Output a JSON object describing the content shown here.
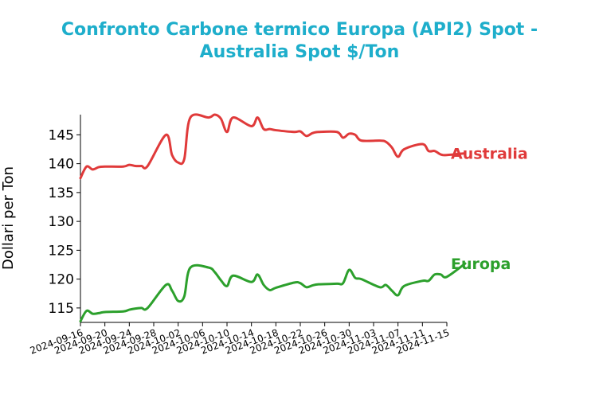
{
  "chart_data": {
    "type": "line",
    "title_lines": [
      "Confronto Carbone termico Europa (API2) Spot -",
      "Australia Spot $/Ton"
    ],
    "ylabel": "Dollari per Ton",
    "xlabel": "",
    "ylim": [
      112.5,
      148.5
    ],
    "yticks": [
      115,
      120,
      125,
      130,
      135,
      140,
      145
    ],
    "xlim": [
      "2024-09-16",
      "2024-11-15"
    ],
    "xticks": [
      "2024-09-16",
      "2024-09-20",
      "2024-09-24",
      "2024-09-28",
      "2024-10-02",
      "2024-10-06",
      "2024-10-10",
      "2024-10-14",
      "2024-10-18",
      "2024-10-22",
      "2024-10-26",
      "2024-10-30",
      "2024-11-03",
      "2024-11-07",
      "2024-11-11",
      "2024-11-15"
    ],
    "legend": "end-of-line labels",
    "grid": false,
    "series": [
      {
        "name": "Australia",
        "color": "#e03a3a",
        "points": [
          [
            "2024-09-16",
            137.5
          ],
          [
            "2024-09-17",
            139.5
          ],
          [
            "2024-09-18",
            139.0
          ],
          [
            "2024-09-19",
            139.4
          ],
          [
            "2024-09-20",
            139.5
          ],
          [
            "2024-09-23",
            139.5
          ],
          [
            "2024-09-24",
            139.8
          ],
          [
            "2024-09-25",
            139.6
          ],
          [
            "2024-09-26",
            139.6
          ],
          [
            "2024-09-27",
            139.6
          ],
          [
            "2024-09-30",
            145.0
          ],
          [
            "2024-10-01",
            141.5
          ],
          [
            "2024-10-02",
            140.2
          ],
          [
            "2024-10-03",
            140.8
          ],
          [
            "2024-10-04",
            148.0
          ],
          [
            "2024-10-07",
            148.0
          ],
          [
            "2024-10-08",
            148.5
          ],
          [
            "2024-10-09",
            147.8
          ],
          [
            "2024-10-10",
            145.5
          ],
          [
            "2024-10-11",
            148.0
          ],
          [
            "2024-10-14",
            146.5
          ],
          [
            "2024-10-15",
            148.0
          ],
          [
            "2024-10-16",
            146.0
          ],
          [
            "2024-10-17",
            146.0
          ],
          [
            "2024-10-18",
            145.8
          ],
          [
            "2024-10-21",
            145.5
          ],
          [
            "2024-10-22",
            145.6
          ],
          [
            "2024-10-23",
            144.8
          ],
          [
            "2024-10-24",
            145.3
          ],
          [
            "2024-10-25",
            145.5
          ],
          [
            "2024-10-28",
            145.5
          ],
          [
            "2024-10-29",
            144.5
          ],
          [
            "2024-10-30",
            145.2
          ],
          [
            "2024-10-31",
            145.0
          ],
          [
            "2024-11-01",
            144.0
          ],
          [
            "2024-11-04",
            144.0
          ],
          [
            "2024-11-05",
            143.8
          ],
          [
            "2024-11-06",
            142.8
          ],
          [
            "2024-11-07",
            141.2
          ],
          [
            "2024-11-08",
            142.5
          ],
          [
            "2024-11-11",
            143.4
          ],
          [
            "2024-11-12",
            142.2
          ],
          [
            "2024-11-13",
            142.2
          ],
          [
            "2024-11-14",
            141.6
          ],
          [
            "2024-11-15",
            141.5
          ],
          [
            "2024-11-18",
            141.8
          ]
        ]
      },
      {
        "name": "Europa",
        "color": "#2ca02c",
        "points": [
          [
            "2024-09-16",
            112.7
          ],
          [
            "2024-09-17",
            114.5
          ],
          [
            "2024-09-18",
            114.0
          ],
          [
            "2024-09-19",
            114.1
          ],
          [
            "2024-09-20",
            114.3
          ],
          [
            "2024-09-23",
            114.4
          ],
          [
            "2024-09-24",
            114.7
          ],
          [
            "2024-09-25",
            114.9
          ],
          [
            "2024-09-26",
            115.0
          ],
          [
            "2024-09-27",
            115.0
          ],
          [
            "2024-09-30",
            119.0
          ],
          [
            "2024-10-01",
            118.0
          ],
          [
            "2024-10-02",
            116.2
          ],
          [
            "2024-10-03",
            117.0
          ],
          [
            "2024-10-04",
            122.0
          ],
          [
            "2024-10-07",
            122.0
          ],
          [
            "2024-10-08",
            121.2
          ],
          [
            "2024-10-09",
            119.8
          ],
          [
            "2024-10-10",
            118.8
          ],
          [
            "2024-10-11",
            120.6
          ],
          [
            "2024-10-14",
            119.5
          ],
          [
            "2024-10-15",
            120.8
          ],
          [
            "2024-10-16",
            119.0
          ],
          [
            "2024-10-17",
            118.1
          ],
          [
            "2024-10-18",
            118.5
          ],
          [
            "2024-10-21",
            119.4
          ],
          [
            "2024-10-22",
            119.3
          ],
          [
            "2024-10-23",
            118.6
          ],
          [
            "2024-10-24",
            118.9
          ],
          [
            "2024-10-25",
            119.1
          ],
          [
            "2024-10-28",
            119.2
          ],
          [
            "2024-10-29",
            119.3
          ],
          [
            "2024-10-30",
            121.6
          ],
          [
            "2024-10-31",
            120.2
          ],
          [
            "2024-11-01",
            120.0
          ],
          [
            "2024-11-04",
            118.6
          ],
          [
            "2024-11-05",
            119.0
          ],
          [
            "2024-11-06",
            118.0
          ],
          [
            "2024-11-07",
            117.2
          ],
          [
            "2024-11-08",
            118.8
          ],
          [
            "2024-11-11",
            119.7
          ],
          [
            "2024-11-12",
            119.7
          ],
          [
            "2024-11-13",
            120.8
          ],
          [
            "2024-11-14",
            120.8
          ],
          [
            "2024-11-15",
            120.4
          ],
          [
            "2024-11-18",
            122.7
          ]
        ]
      }
    ]
  },
  "colors": {
    "title": "#1eaecb",
    "axis": "#000000"
  }
}
